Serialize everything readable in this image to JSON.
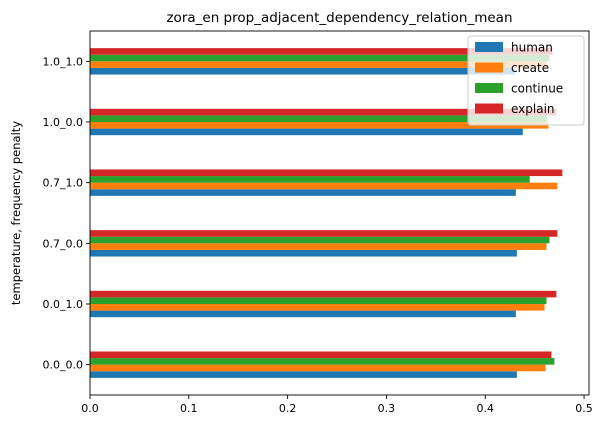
{
  "chart_data": {
    "type": "bar",
    "orientation": "horizontal",
    "title": "zora_en prop_adjacent_dependency_relation_mean",
    "xlabel": "",
    "ylabel": "temperature, frequency penalty",
    "xlim": [
      0,
      0.505
    ],
    "xticks": [
      0.0,
      0.1,
      0.2,
      0.3,
      0.4,
      0.5
    ],
    "xtick_labels": [
      "0.0",
      "0.1",
      "0.2",
      "0.3",
      "0.4",
      "0.5"
    ],
    "grid": false,
    "legend_position": "top-right",
    "categories": [
      "0.0_0.0",
      "0.0_1.0",
      "0.7_0.0",
      "0.7_1.0",
      "1.0_0.0",
      "1.0_1.0"
    ],
    "series": [
      {
        "name": "human",
        "color": "#1f77b4",
        "values": [
          0.432,
          0.431,
          0.432,
          0.431,
          0.438,
          0.43
        ]
      },
      {
        "name": "create",
        "color": "#ff7f0e",
        "values": [
          0.461,
          0.46,
          0.462,
          0.473,
          0.464,
          0.462
        ]
      },
      {
        "name": "continue",
        "color": "#2ca02c",
        "values": [
          0.47,
          0.462,
          0.465,
          0.445,
          0.463,
          0.465
        ]
      },
      {
        "name": "explain",
        "color": "#d62728",
        "values": [
          0.467,
          0.472,
          0.473,
          0.478,
          0.472,
          0.468
        ]
      }
    ]
  }
}
